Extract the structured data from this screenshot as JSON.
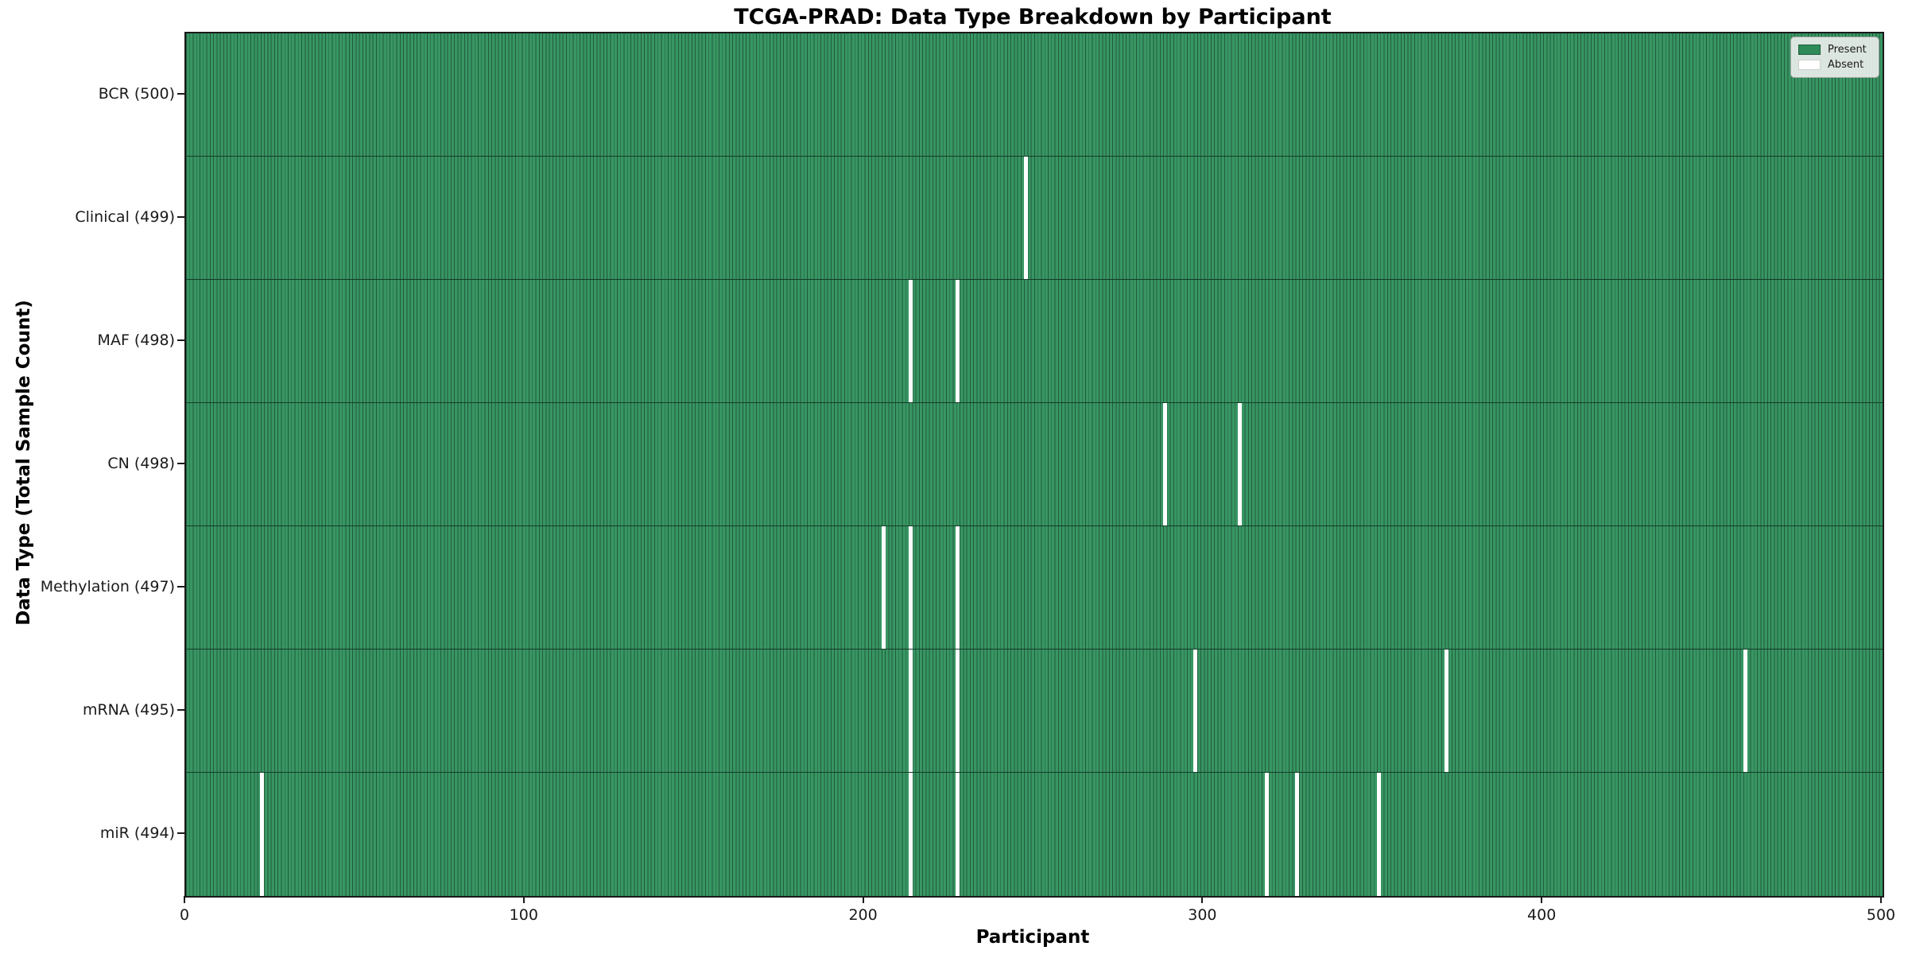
{
  "title": "TCGA-PRAD: Data Type Breakdown by Participant",
  "axes": {
    "xlabel": "Participant",
    "ylabel": "Data Type (Total Sample Count)"
  },
  "legend": {
    "present_label": "Present",
    "absent_label": "Absent"
  },
  "colors": {
    "present_fill": "#389663",
    "bar_edge": "#215b3c",
    "row_boundary": "#153c27",
    "absent_fill": "#ffffff",
    "legend_patch_present": "#2E8B57"
  },
  "chart_data": {
    "type": "heatmap",
    "title": "TCGA-PRAD: Data Type Breakdown by Participant",
    "xlabel": "Participant",
    "ylabel": "Data Type (Total Sample Count)",
    "x_range": [
      0,
      500
    ],
    "n_participants": 500,
    "x_ticks": [
      0,
      100,
      200,
      300,
      400,
      500
    ],
    "legend_entries": [
      "Present",
      "Absent"
    ],
    "legend_position": "upper right",
    "grid": false,
    "rows": [
      {
        "label": "BCR (500)",
        "data_type": "BCR",
        "total": 500,
        "absent_participants": []
      },
      {
        "label": "Clinical (499)",
        "data_type": "Clinical",
        "total": 499,
        "absent_participants": [
          247
        ]
      },
      {
        "label": "MAF (498)",
        "data_type": "MAF",
        "total": 498,
        "absent_participants": [
          213,
          227
        ]
      },
      {
        "label": "CN (498)",
        "data_type": "CN",
        "total": 498,
        "absent_participants": [
          288,
          310
        ]
      },
      {
        "label": "Methylation (497)",
        "data_type": "Methylation",
        "total": 497,
        "absent_participants": [
          205,
          213,
          227
        ]
      },
      {
        "label": "mRNA (495)",
        "data_type": "mRNA",
        "total": 495,
        "absent_participants": [
          213,
          227,
          297,
          371,
          459
        ]
      },
      {
        "label": "miR (494)",
        "data_type": "miR",
        "total": 494,
        "absent_participants": [
          22,
          213,
          227,
          318,
          327,
          351
        ]
      }
    ]
  }
}
